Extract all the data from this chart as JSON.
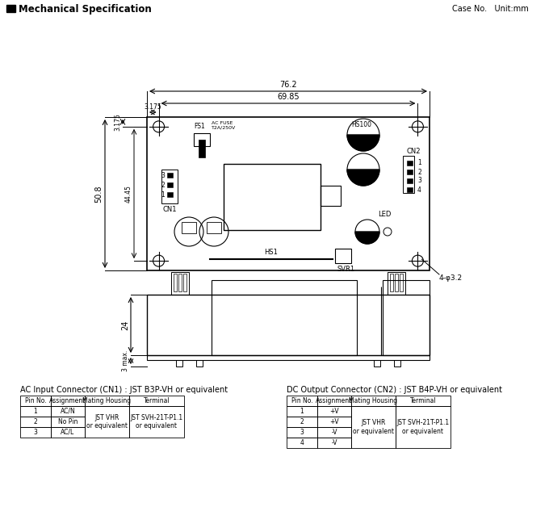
{
  "title": "Mechanical Specification",
  "case_note": "Case No.   Unit:mm",
  "bg_color": "#ffffff",
  "line_color": "#000000",
  "dim_76_2": "76.2",
  "dim_69_85": "69.85",
  "dim_3_175_h": "3.175",
  "dim_3_175_v": "3.175",
  "dim_50_8": "50.8",
  "dim_44_45": "44.45",
  "dim_24": "24",
  "dim_3max": "3 max.",
  "dim_phi": "4-φ3.2",
  "label_fs1": "FS1",
  "label_ac_fuse": "AC FUSE\nT2A/250V",
  "label_hs100": "HS100",
  "label_hs1": "HS1",
  "label_svr1": "SVR1",
  "label_cn1": "CN1",
  "label_cn2": "CN2",
  "label_led": "LED",
  "ac_title": "AC Input Connector (CN1) : JST B3P-VH or equivalent",
  "dc_title": "DC Output Connector (CN2) : JST B4P-VH or equivalent",
  "ac_headers": [
    "Pin No.",
    "Assignment",
    "Mating Housing",
    "Terminal"
  ],
  "ac_rows": [
    [
      "1",
      "AC/N"
    ],
    [
      "2",
      "No Pin"
    ],
    [
      "3",
      "AC/L"
    ]
  ],
  "ac_mating": "JST VHR\nor equivalent",
  "ac_terminal": "JST SVH-21T-P1.1\nor equivalent",
  "dc_headers": [
    "Pin No.",
    "Assignment",
    "Mating Housing",
    "Terminal"
  ],
  "dc_rows": [
    [
      "1",
      "+V"
    ],
    [
      "2",
      "+V"
    ],
    [
      "3",
      "-V"
    ],
    [
      "4",
      "-V"
    ]
  ],
  "dc_mating": "JST VHR\nor equivalent",
  "dc_terminal": "JST SVH-21T-P1.1\nor equivalent"
}
